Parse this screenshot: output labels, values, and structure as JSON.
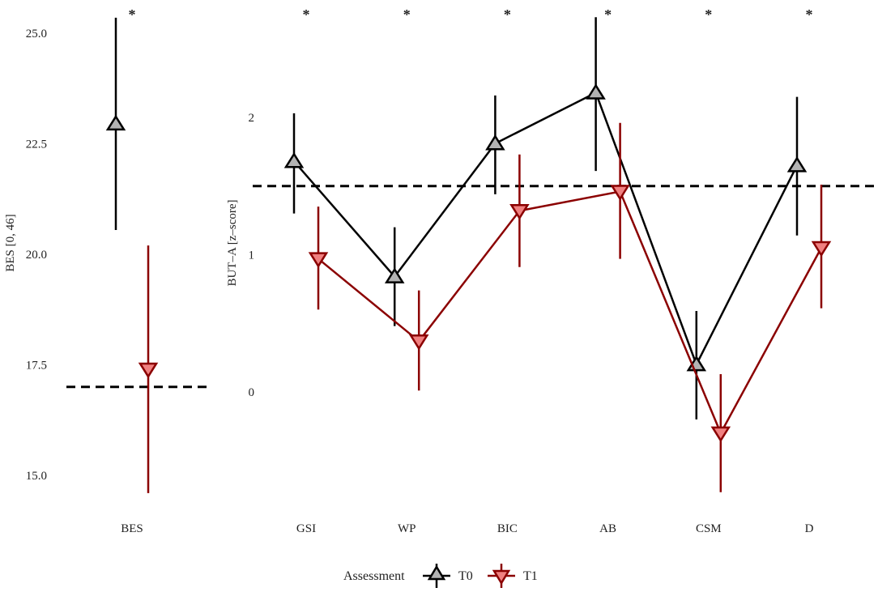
{
  "chart_data": [
    {
      "type": "scatter",
      "panel": "BES",
      "ylabel": "BES [0, 46]",
      "ylim": [
        14.4,
        25.8
      ],
      "yticks": [
        "15.0",
        "17.5",
        "20.0",
        "22.5",
        "25.0"
      ],
      "categories": [
        "BES"
      ],
      "reference_line": 17.0,
      "significance": [
        "*"
      ],
      "series": [
        {
          "name": "T0",
          "values": [
            22.95
          ],
          "lower": [
            20.55
          ],
          "upper": [
            25.35
          ]
        },
        {
          "name": "T1",
          "values": [
            17.4
          ],
          "lower": [
            14.6
          ],
          "upper": [
            20.2
          ]
        }
      ],
      "grid": false
    },
    {
      "type": "line",
      "panel": "BUT-A",
      "ylabel": "BUT–A [z–score]",
      "ylim": [
        -0.75,
        2.85
      ],
      "yticks": [
        "0",
        "1",
        "2"
      ],
      "categories": [
        "GSI",
        "WP",
        "BIC",
        "AB",
        "CSM",
        "D"
      ],
      "reference_line": 1.5,
      "significance": [
        "*",
        "*",
        "*",
        "*",
        "*",
        "*"
      ],
      "series": [
        {
          "name": "T0",
          "values": [
            1.68,
            0.84,
            1.81,
            2.18,
            0.2,
            1.65
          ],
          "lower": [
            1.3,
            0.48,
            1.44,
            1.61,
            -0.2,
            1.14
          ],
          "upper": [
            2.03,
            1.2,
            2.16,
            2.73,
            0.59,
            2.15
          ]
        },
        {
          "name": "T1",
          "values": [
            0.97,
            0.37,
            1.32,
            1.46,
            -0.3,
            1.05
          ],
          "lower": [
            0.6,
            0.01,
            0.91,
            0.97,
            -0.73,
            0.61
          ],
          "upper": [
            1.35,
            0.74,
            1.73,
            1.96,
            0.13,
            1.51
          ]
        }
      ],
      "grid": false
    }
  ],
  "legend": {
    "title": "Assessment",
    "placement": "bottom",
    "items": [
      {
        "label": "T0",
        "line_color": "#000000",
        "fill": "#b3b3b3",
        "marker": "triangle-up"
      },
      {
        "label": "T1",
        "line_color": "#8b0000",
        "fill": "#f08080",
        "marker": "triangle-down"
      }
    ]
  }
}
